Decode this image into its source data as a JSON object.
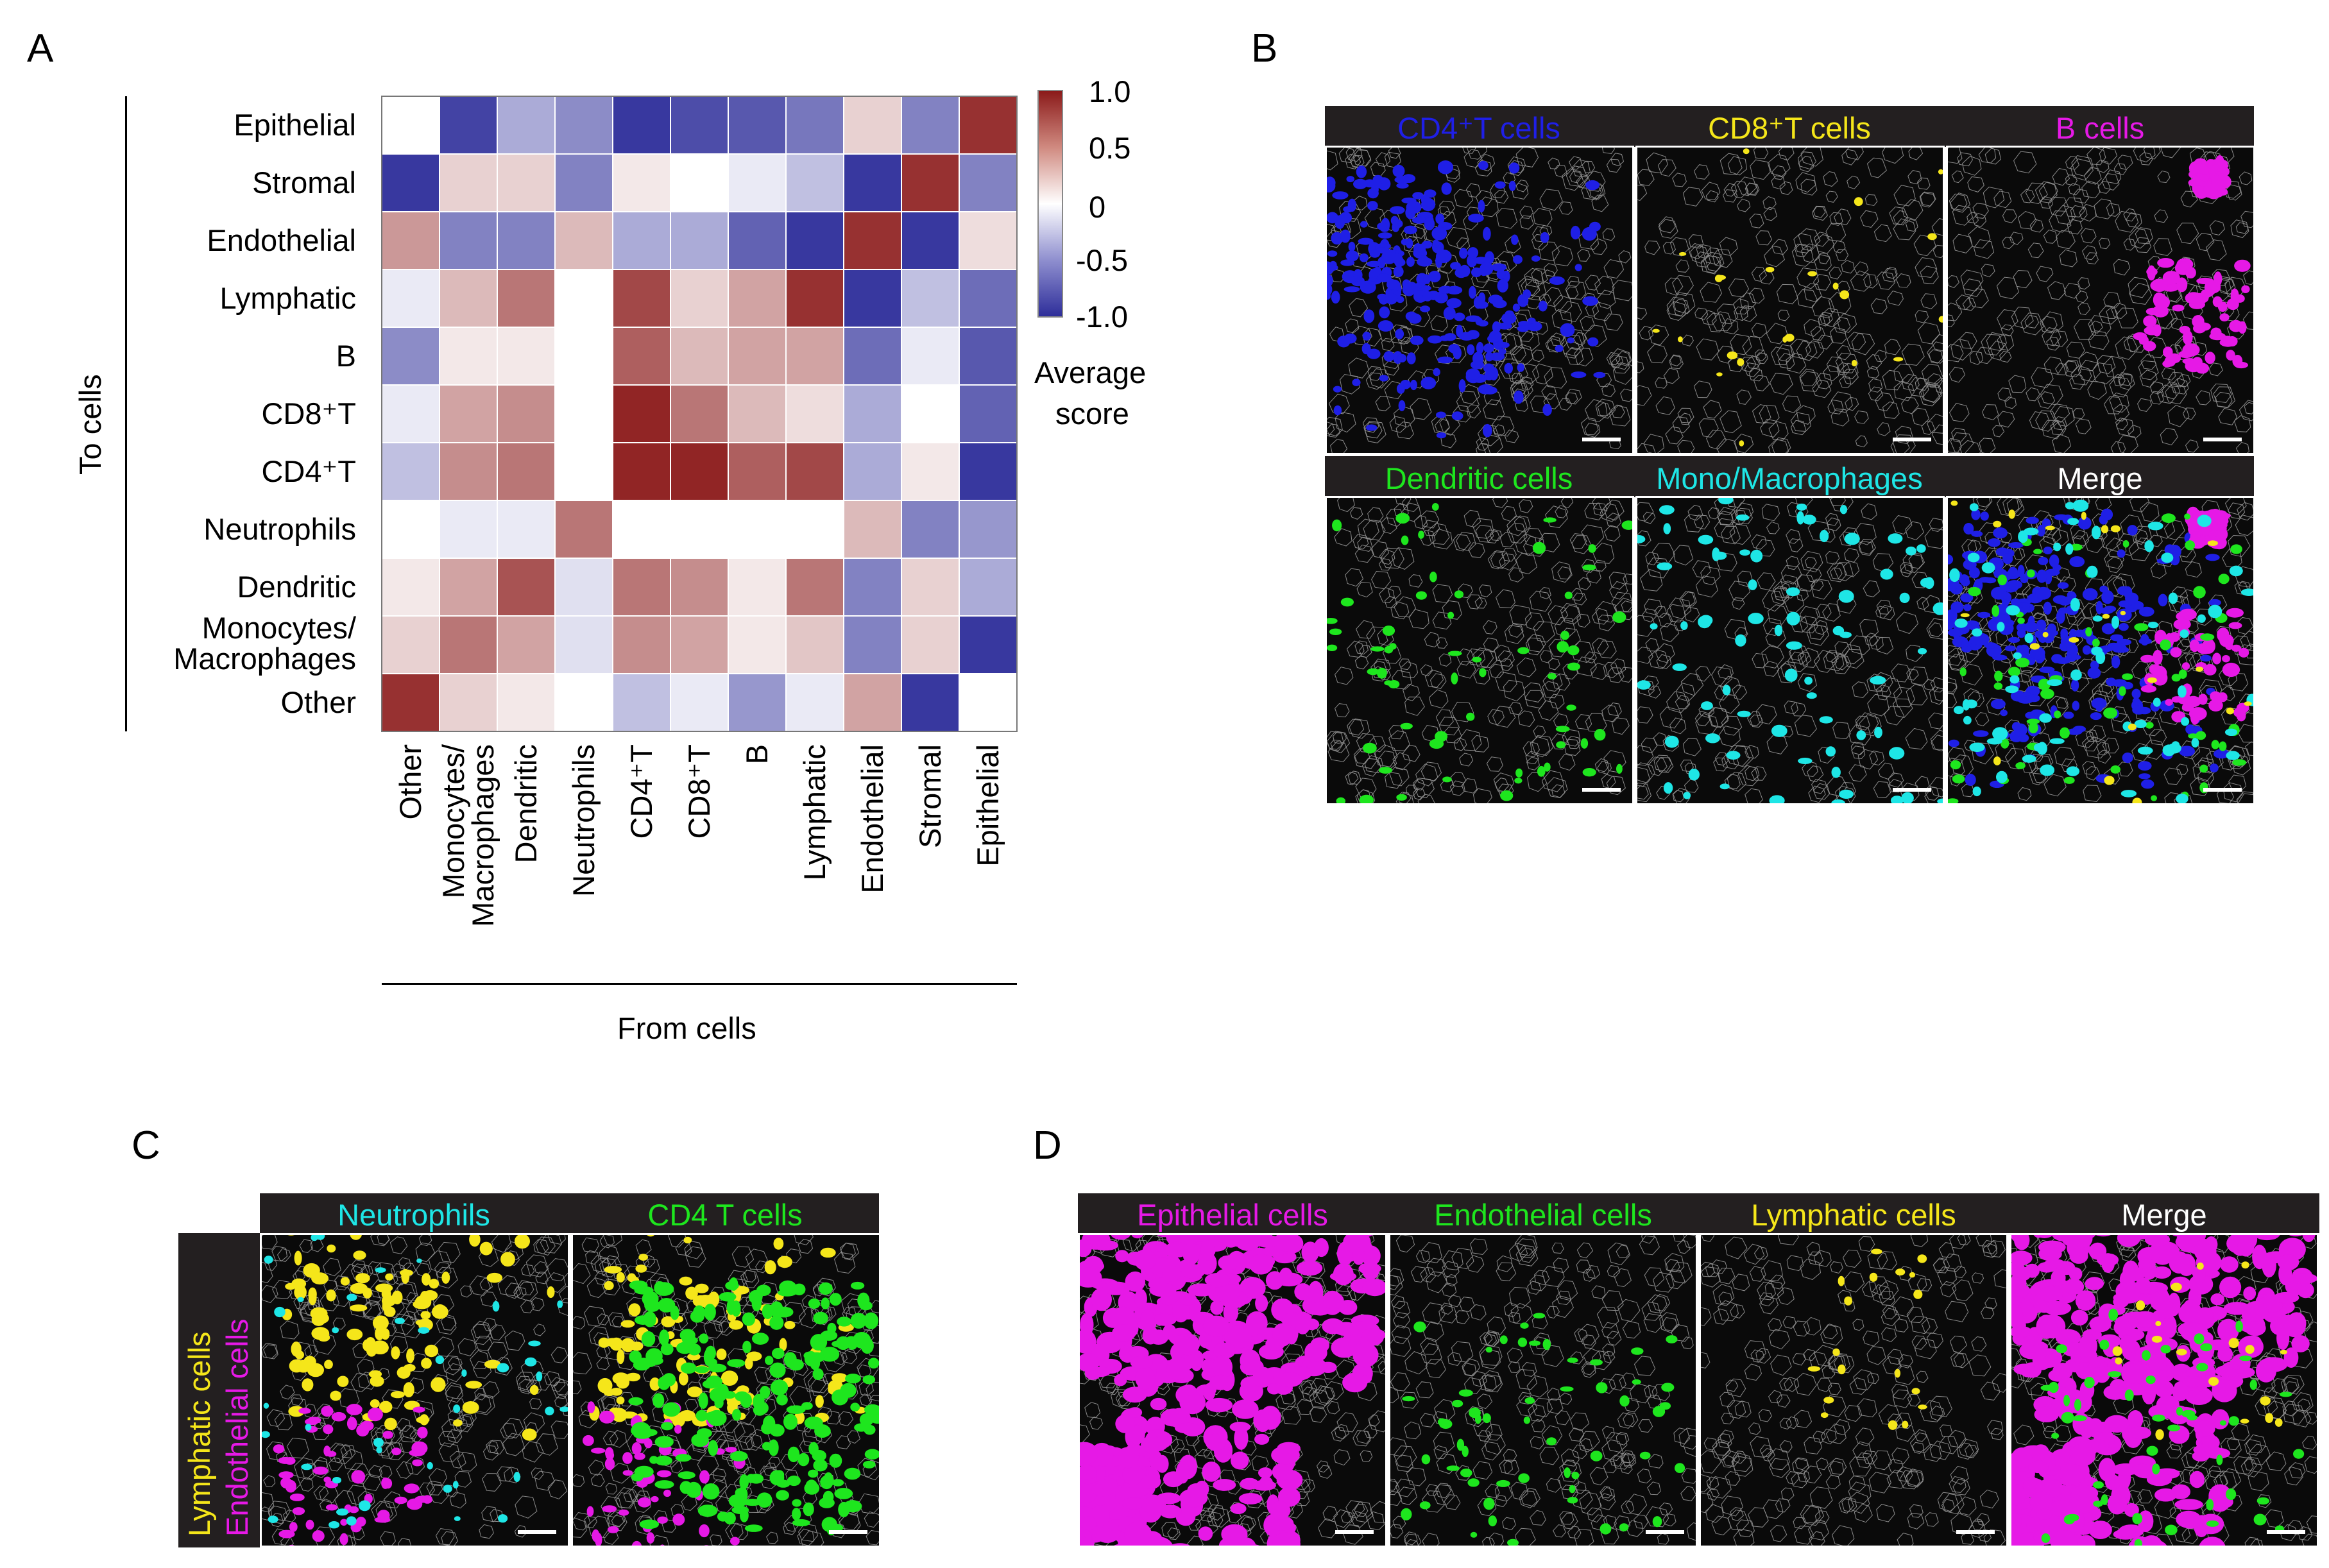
{
  "panels": {
    "A": {
      "label": "A",
      "y_axis_title": "To cells",
      "x_axis_title": "From cells",
      "colorbar": {
        "ticks": [
          "1.0",
          "0.5",
          "0",
          "-0.5",
          "-1.0"
        ],
        "title_line1": "Average",
        "title_line2": "score",
        "colors": {
          "high": "#8b1a1a",
          "mid": "#ffffff",
          "low": "#2e2e9a"
        }
      }
    },
    "B": {
      "label": "B",
      "headers": [
        {
          "label": "CD4⁺T cells",
          "color": "#1f1fe6"
        },
        {
          "label": "CD8⁺T cells",
          "color": "#f5e61a"
        },
        {
          "label": "B cells",
          "color": "#e619e6"
        },
        {
          "label": "Dendritic cells",
          "color": "#1ee61e"
        },
        {
          "label": "Mono/Macrophages",
          "color": "#1ee6e6"
        },
        {
          "label": "Merge",
          "color": "#ffffff"
        }
      ]
    },
    "C": {
      "label": "C",
      "headers": [
        {
          "label": "Neutrophils",
          "color": "#1ee6e6"
        },
        {
          "label": "CD4 T cells",
          "color": "#1ee61e"
        }
      ],
      "side_labels": [
        {
          "label": "Lymphatic  cells",
          "color": "#f5e61a"
        },
        {
          "label": "Endothelial cells",
          "color": "#e619e6"
        }
      ]
    },
    "D": {
      "label": "D",
      "headers": [
        {
          "label": "Epithelial cells",
          "color": "#e619e6"
        },
        {
          "label": "Endothelial cells",
          "color": "#1ee61e"
        },
        {
          "label": "Lymphatic cells",
          "color": "#f5e61a"
        },
        {
          "label": "Merge",
          "color": "#ffffff"
        }
      ]
    }
  },
  "chart_data": {
    "type": "heatmap",
    "title": "",
    "xlabel": "From cells",
    "ylabel": "To cells",
    "rows": [
      "Epithelial",
      "Stromal",
      "Endothelial",
      "Lymphatic",
      "B",
      "CD8⁺T",
      "CD4⁺T",
      "Neutrophils",
      "Dendritic",
      "Monocytes/\nMacrophages",
      "Other"
    ],
    "cols": [
      "Other",
      "Monocytes/\nMacrophages",
      "Dendritic",
      "Neutrophils",
      "CD4⁺T",
      "CD8⁺T",
      "B",
      "Lymphatic",
      "Endothelial",
      "Stromal",
      "Epithelial"
    ],
    "values": [
      [
        0.0,
        -0.9,
        -0.4,
        -0.55,
        -0.95,
        -0.85,
        -0.8,
        -0.65,
        0.2,
        -0.6,
        0.9
      ],
      [
        -0.95,
        0.2,
        0.2,
        -0.6,
        0.1,
        0.0,
        -0.1,
        -0.3,
        -0.95,
        0.9,
        -0.6
      ],
      [
        0.45,
        -0.6,
        -0.6,
        0.3,
        -0.4,
        -0.4,
        -0.75,
        -0.95,
        0.9,
        -0.95,
        0.15
      ],
      [
        -0.1,
        0.3,
        0.6,
        0.0,
        0.8,
        0.2,
        0.4,
        0.9,
        -0.95,
        -0.3,
        -0.7
      ],
      [
        -0.55,
        0.1,
        0.1,
        0.0,
        0.7,
        0.3,
        0.4,
        0.4,
        -0.7,
        -0.1,
        -0.8
      ],
      [
        -0.1,
        0.4,
        0.5,
        0.0,
        0.95,
        0.6,
        0.3,
        0.15,
        -0.4,
        0.0,
        -0.75
      ],
      [
        -0.3,
        0.5,
        0.6,
        0.0,
        0.95,
        0.95,
        0.7,
        0.8,
        -0.4,
        0.1,
        -0.95
      ],
      [
        0.0,
        -0.1,
        -0.1,
        0.6,
        0.0,
        0.0,
        0.0,
        0.0,
        0.3,
        -0.6,
        -0.5
      ],
      [
        0.1,
        0.4,
        0.75,
        -0.15,
        0.6,
        0.5,
        0.1,
        0.6,
        -0.6,
        0.2,
        -0.4
      ],
      [
        0.2,
        0.6,
        0.4,
        -0.15,
        0.5,
        0.4,
        0.1,
        0.25,
        -0.6,
        0.2,
        -0.95
      ],
      [
        0.9,
        0.2,
        0.1,
        0.0,
        -0.3,
        -0.1,
        -0.5,
        -0.1,
        0.4,
        -0.95,
        0.0
      ]
    ],
    "zlim": [
      -1.0,
      1.0
    ]
  }
}
